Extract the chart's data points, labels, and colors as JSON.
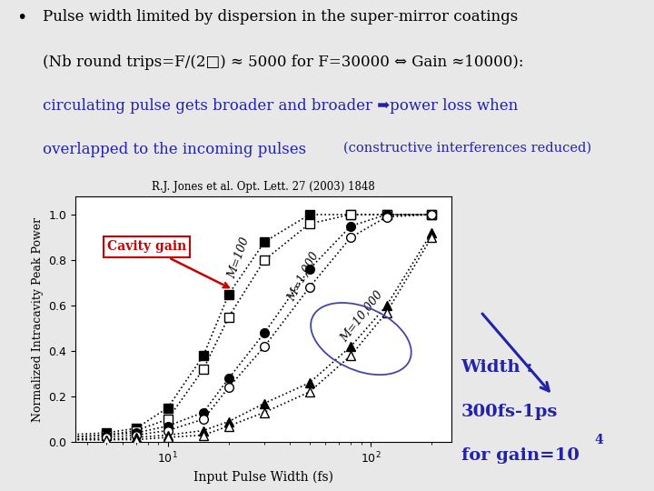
{
  "title_text": "R.J. Jones et al. Opt. Lett. 27 (2003) 1848",
  "xlabel": "Input Pulse Width (fs)",
  "ylabel": "Normalized Intracavity Peak Power",
  "series": {
    "M100_filled": {
      "x": [
        3,
        5,
        7,
        10,
        15,
        20,
        30,
        50,
        80,
        120,
        200
      ],
      "y": [
        0.03,
        0.04,
        0.06,
        0.15,
        0.38,
        0.65,
        0.88,
        1.0,
        1.0,
        1.0,
        1.0
      ]
    },
    "M100_open": {
      "x": [
        3,
        5,
        7,
        10,
        15,
        20,
        30,
        50,
        80,
        120,
        200
      ],
      "y": [
        0.02,
        0.03,
        0.05,
        0.1,
        0.32,
        0.55,
        0.8,
        0.96,
        1.0,
        1.0,
        1.0
      ]
    },
    "M1000_filled": {
      "x": [
        3,
        5,
        7,
        10,
        15,
        20,
        30,
        50,
        80,
        120,
        200
      ],
      "y": [
        0.02,
        0.03,
        0.04,
        0.07,
        0.13,
        0.28,
        0.48,
        0.76,
        0.95,
        1.0,
        1.0
      ]
    },
    "M1000_open": {
      "x": [
        3,
        5,
        7,
        10,
        15,
        20,
        30,
        50,
        80,
        120,
        200
      ],
      "y": [
        0.01,
        0.02,
        0.03,
        0.05,
        0.1,
        0.24,
        0.42,
        0.68,
        0.9,
        0.99,
        1.0
      ]
    },
    "M10000_filled": {
      "x": [
        3,
        5,
        7,
        10,
        15,
        20,
        30,
        50,
        80,
        120,
        200
      ],
      "y": [
        0.01,
        0.01,
        0.02,
        0.03,
        0.05,
        0.09,
        0.17,
        0.26,
        0.42,
        0.6,
        0.92
      ]
    },
    "M10000_open": {
      "x": [
        3,
        5,
        7,
        10,
        15,
        20,
        30,
        50,
        80,
        120,
        200
      ],
      "y": [
        0.01,
        0.01,
        0.01,
        0.02,
        0.03,
        0.07,
        0.13,
        0.22,
        0.38,
        0.57,
        0.9
      ]
    }
  },
  "bg_color": "#e8e8e8",
  "plot_bg": "white",
  "text_color_blue": "#2222aa",
  "text_color_red": "#cc0000",
  "arrow_color_blue": "#2222aa",
  "arrow_color_red": "#cc0000",
  "cavity_gain_label": "Cavity gain"
}
